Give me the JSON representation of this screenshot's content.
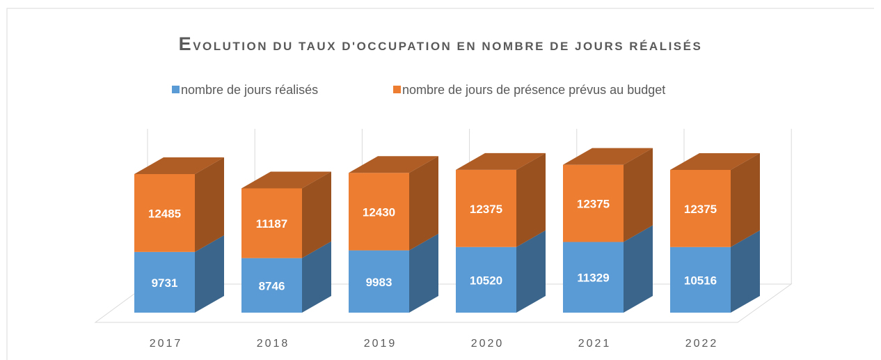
{
  "chart_data": {
    "type": "bar3d_stacked",
    "title": "EVOLUTION DU TAUX D'OCCUPATION EN NOMBRE DE JOURS RÉALISÉS",
    "categories": [
      "2017",
      "2018",
      "2019",
      "2020",
      "2021",
      "2022"
    ],
    "series": [
      {
        "name": "nombre de jours réalisés",
        "color": "#5b9bd5",
        "values": [
          9731,
          8746,
          9983,
          10520,
          11329,
          10516
        ]
      },
      {
        "name": "nombre de jours de présence prévus au budget",
        "color": "#ed7d31",
        "values": [
          12485,
          11187,
          12430,
          12375,
          12375,
          12375
        ]
      }
    ],
    "ylim": [
      0,
      25000
    ],
    "legend": "top"
  }
}
